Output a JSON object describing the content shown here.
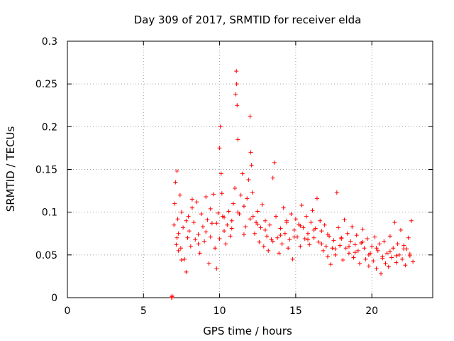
{
  "chart_data": {
    "type": "scatter",
    "title": "Day 309 of 2017, SRMTID for receiver elda",
    "xlabel": "GPS time / hours",
    "ylabel": "SRMTID / TECUs",
    "xlim": [
      0,
      24
    ],
    "ylim": [
      0,
      0.3
    ],
    "x_ticks": [
      0,
      5,
      10,
      15,
      20
    ],
    "x_tick_labels": [
      "0",
      "5",
      "10",
      "15",
      "20"
    ],
    "y_ticks": [
      0,
      0.05,
      0.1,
      0.15,
      0.2,
      0.25,
      0.3
    ],
    "y_tick_labels": [
      "0",
      "0.05",
      "0.1",
      "0.15",
      "0.2",
      "0.25",
      "0.3"
    ],
    "grid": true,
    "marker": "+",
    "color": "#ff0000",
    "series": [
      {
        "name": "SRMTID",
        "x": [
          6.85,
          6.86,
          6.87,
          6.88,
          7.0,
          7.05,
          7.1,
          7.15,
          7.2,
          7.25,
          7.3,
          7.4,
          7.45,
          7.5,
          7.6,
          7.7,
          7.8,
          7.9,
          7.95,
          8.0,
          8.1,
          8.2,
          8.3,
          8.4,
          8.5,
          8.6,
          8.7,
          8.8,
          8.9,
          9.0,
          9.1,
          9.2,
          9.3,
          9.4,
          9.5,
          9.6,
          9.7,
          9.8,
          9.9,
          10.0,
          10.05,
          10.1,
          10.15,
          10.2,
          10.3,
          10.4,
          10.5,
          10.6,
          10.7,
          10.8,
          10.9,
          11.0,
          11.05,
          11.1,
          11.12,
          11.15,
          11.2,
          11.3,
          11.4,
          11.5,
          11.6,
          11.7,
          11.8,
          11.9,
          12.0,
          12.05,
          12.1,
          12.15,
          12.2,
          12.3,
          12.4,
          12.5,
          12.6,
          12.7,
          12.8,
          12.9,
          13.0,
          13.1,
          13.2,
          13.3,
          13.4,
          13.5,
          13.6,
          13.7,
          13.8,
          13.9,
          14.0,
          14.1,
          14.2,
          14.3,
          14.4,
          14.5,
          14.6,
          14.7,
          14.8,
          14.9,
          15.0,
          15.1,
          15.2,
          15.3,
          15.4,
          15.5,
          15.6,
          15.7,
          15.8,
          15.9,
          16.0,
          16.1,
          16.2,
          16.3,
          16.4,
          16.5,
          16.6,
          16.7,
          16.8,
          16.9,
          17.0,
          17.1,
          17.2,
          17.3,
          17.4,
          17.5,
          17.6,
          17.7,
          17.8,
          17.9,
          18.0,
          18.1,
          18.2,
          18.3,
          18.4,
          18.5,
          18.6,
          18.7,
          18.8,
          18.9,
          19.0,
          19.1,
          19.2,
          19.3,
          19.4,
          19.5,
          19.6,
          19.7,
          19.8,
          19.9,
          20.0,
          20.1,
          20.2,
          20.3,
          20.4,
          20.5,
          20.6,
          20.7,
          20.8,
          20.9,
          21.0,
          21.1,
          21.2,
          21.3,
          21.4,
          21.5,
          21.6,
          21.7,
          21.8,
          21.9,
          22.0,
          22.1,
          22.2,
          22.3,
          22.4,
          22.5,
          22.6,
          22.7,
          7.2,
          7.3,
          7.5,
          7.8,
          8.2,
          8.6,
          9.1,
          9.4,
          9.8,
          10.0,
          10.3,
          10.8,
          11.2,
          11.6,
          12.0,
          12.5,
          13.0,
          13.5,
          14.0,
          14.4,
          14.9,
          15.3,
          15.8,
          16.2,
          16.7,
          17.1,
          17.6,
          18.0,
          18.5,
          18.9,
          19.4,
          19.8,
          20.3,
          20.7,
          21.2,
          21.6,
          22.1,
          22.5
        ],
        "y": [
          0.0,
          0.0,
          0.001,
          0.002,
          0.085,
          0.11,
          0.135,
          0.062,
          0.148,
          0.092,
          0.075,
          0.12,
          0.058,
          0.1,
          0.082,
          0.045,
          0.03,
          0.07,
          0.095,
          0.078,
          0.06,
          0.105,
          0.088,
          0.068,
          0.112,
          0.074,
          0.052,
          0.098,
          0.083,
          0.066,
          0.118,
          0.091,
          0.04,
          0.071,
          0.087,
          0.121,
          0.058,
          0.034,
          0.099,
          0.175,
          0.2,
          0.145,
          0.122,
          0.095,
          0.078,
          0.063,
          0.085,
          0.101,
          0.072,
          0.09,
          0.11,
          0.128,
          0.238,
          0.265,
          0.25,
          0.225,
          0.185,
          0.098,
          0.12,
          0.145,
          0.107,
          0.083,
          0.116,
          0.138,
          0.212,
          0.17,
          0.155,
          0.123,
          0.095,
          0.075,
          0.088,
          0.101,
          0.065,
          0.082,
          0.109,
          0.06,
          0.09,
          0.072,
          0.055,
          0.085,
          0.068,
          0.14,
          0.158,
          0.095,
          0.07,
          0.052,
          0.081,
          0.063,
          0.105,
          0.075,
          0.09,
          0.058,
          0.068,
          0.098,
          0.045,
          0.079,
          0.092,
          0.071,
          0.086,
          0.06,
          0.108,
          0.082,
          0.069,
          0.095,
          0.075,
          0.062,
          0.088,
          0.102,
          0.07,
          0.081,
          0.116,
          0.065,
          0.09,
          0.078,
          0.055,
          0.085,
          0.06,
          0.048,
          0.072,
          0.039,
          0.058,
          0.067,
          0.05,
          0.123,
          0.082,
          0.061,
          0.07,
          0.044,
          0.091,
          0.058,
          0.075,
          0.052,
          0.066,
          0.083,
          0.047,
          0.062,
          0.073,
          0.055,
          0.04,
          0.064,
          0.08,
          0.058,
          0.045,
          0.069,
          0.037,
          0.052,
          0.06,
          0.043,
          0.071,
          0.034,
          0.055,
          0.063,
          0.028,
          0.048,
          0.066,
          0.04,
          0.052,
          0.036,
          0.072,
          0.047,
          0.058,
          0.088,
          0.041,
          0.063,
          0.05,
          0.079,
          0.045,
          0.061,
          0.038,
          0.057,
          0.07,
          0.049,
          0.09,
          0.042,
          0.07,
          0.055,
          0.044,
          0.09,
          0.115,
          0.063,
          0.077,
          0.104,
          0.087,
          0.069,
          0.094,
          0.081,
          0.1,
          0.074,
          0.092,
          0.086,
          0.079,
          0.066,
          0.073,
          0.088,
          0.071,
          0.084,
          0.068,
          0.079,
          0.063,
          0.074,
          0.057,
          0.069,
          0.06,
          0.053,
          0.065,
          0.05,
          0.058,
          0.046,
          0.054,
          0.049,
          0.057,
          0.051
        ]
      }
    ]
  }
}
